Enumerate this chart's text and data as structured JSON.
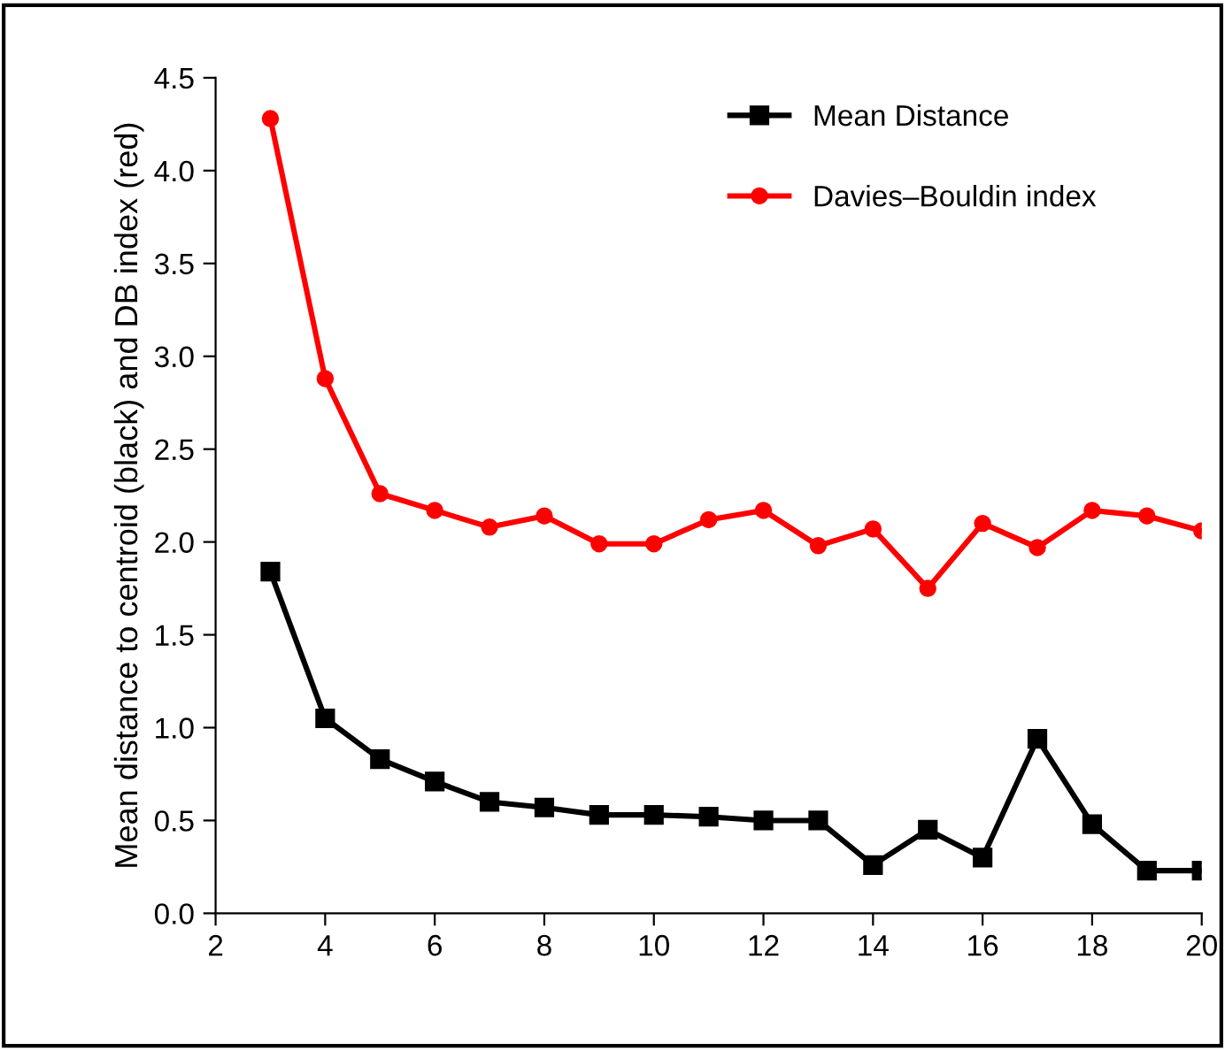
{
  "chart_data": {
    "type": "line",
    "ylabel": "Mean distance to centroid (black) and DB index (red)",
    "x": [
      3,
      4,
      5,
      6,
      7,
      8,
      9,
      10,
      11,
      12,
      13,
      14,
      15,
      16,
      17,
      18,
      19,
      20
    ],
    "series": [
      {
        "name": "Mean Distance",
        "color": "#000000",
        "marker": "square",
        "values": [
          1.84,
          1.05,
          0.83,
          0.71,
          0.6,
          0.57,
          0.53,
          0.53,
          0.52,
          0.5,
          0.5,
          0.26,
          0.45,
          0.3,
          0.94,
          0.48,
          0.23,
          0.23
        ]
      },
      {
        "name": "Davies–Bouldin index",
        "color": "#ff0000",
        "marker": "circle",
        "values": [
          4.28,
          2.88,
          2.26,
          2.17,
          2.08,
          2.14,
          1.99,
          1.99,
          2.12,
          2.17,
          1.98,
          2.07,
          1.75,
          2.1,
          1.97,
          2.17,
          2.14,
          2.06
        ]
      }
    ],
    "xlim": [
      2,
      20
    ],
    "xticks": [
      2,
      4,
      6,
      8,
      10,
      12,
      14,
      16,
      18,
      20
    ],
    "ylim": [
      0,
      4.5
    ],
    "yticks": [
      {
        "value": 0,
        "label": "0.0"
      },
      {
        "value": 0.5,
        "label": "0.5"
      },
      {
        "value": 1,
        "label": "1.0"
      },
      {
        "value": 1.5,
        "label": "1.5"
      },
      {
        "value": 2,
        "label": "2.0"
      },
      {
        "value": 2.5,
        "label": "2.5"
      },
      {
        "value": 3,
        "label": "3.0"
      },
      {
        "value": 3.5,
        "label": "3.5"
      },
      {
        "value": 4,
        "label": "4.0"
      },
      {
        "value": 4.5,
        "label": "4.5"
      }
    ],
    "grid": false,
    "legend": "top right"
  }
}
